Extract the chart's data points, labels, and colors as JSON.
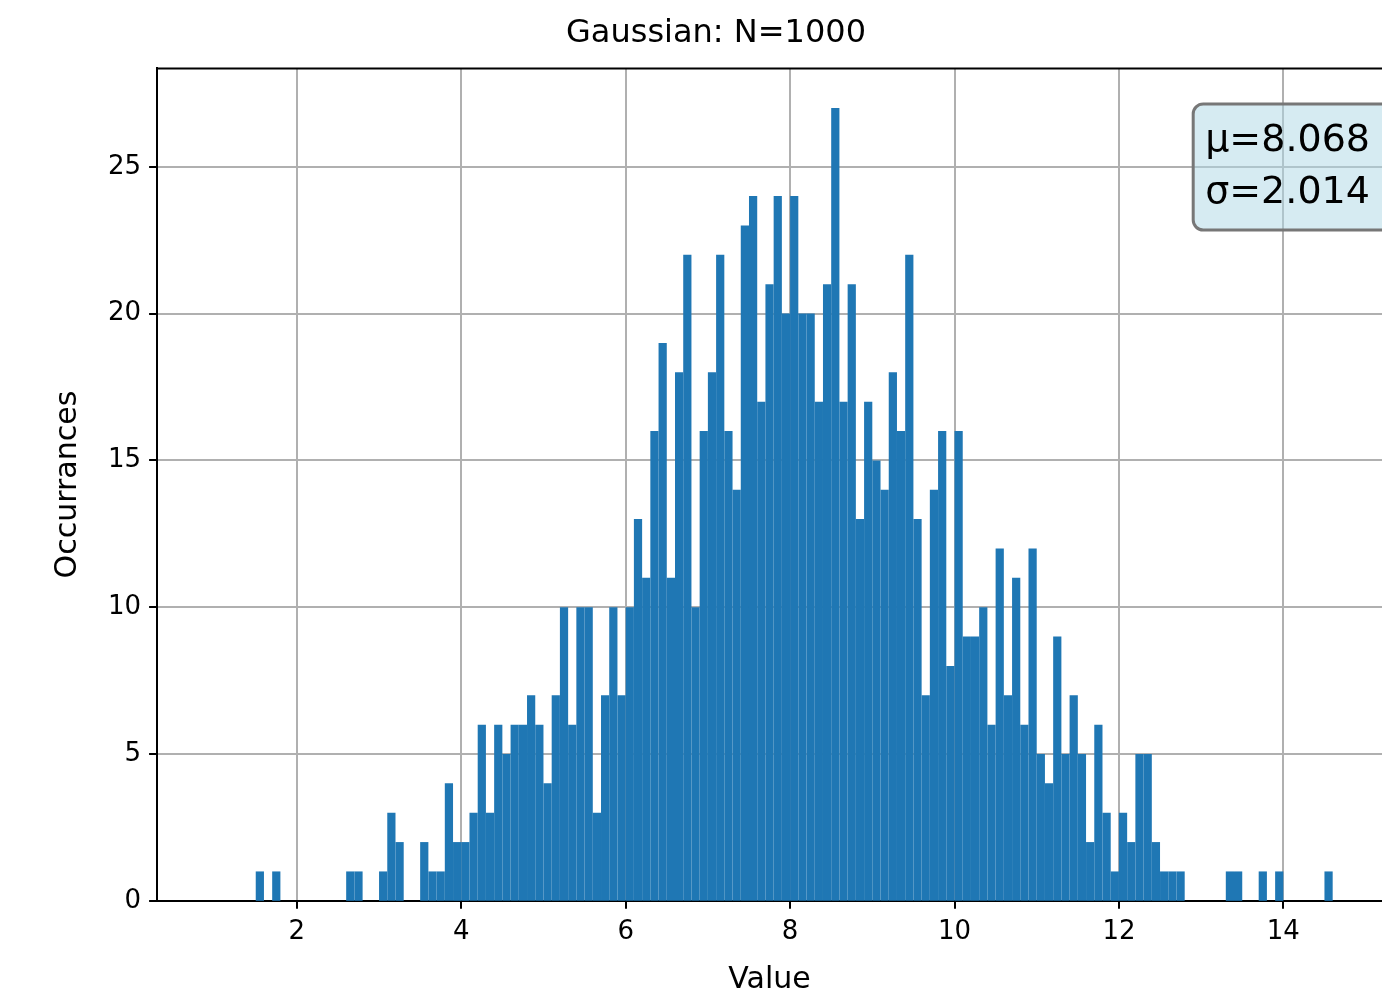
{
  "chart_data": {
    "type": "histogram",
    "title": "Gaussian: N=1000",
    "xlabel": "Value",
    "ylabel": "Occurrances",
    "bins": [
      1.5,
      1.6,
      1.7,
      1.8,
      1.9,
      2.0,
      2.1,
      2.2,
      2.3,
      2.4,
      2.5,
      2.6,
      2.7,
      2.8,
      2.9,
      3.0,
      3.1,
      3.2,
      3.3,
      3.4,
      3.5,
      3.6,
      3.7,
      3.8,
      3.9,
      4.0,
      4.1,
      4.2,
      4.3,
      4.4,
      4.5,
      4.6,
      4.7,
      4.8,
      4.9,
      5.0,
      5.1,
      5.2,
      5.3,
      5.4,
      5.5,
      5.6,
      5.7,
      5.8,
      5.9,
      6.0,
      6.1,
      6.2,
      6.3,
      6.4,
      6.5,
      6.6,
      6.7,
      6.8,
      6.9,
      7.0,
      7.1,
      7.2,
      7.3,
      7.4,
      7.5,
      7.6,
      7.7,
      7.8,
      7.9,
      8.0,
      8.1,
      8.2,
      8.3,
      8.4,
      8.5,
      8.6,
      8.7,
      8.8,
      8.9,
      9.0,
      9.1,
      9.2,
      9.3,
      9.4,
      9.5,
      9.6,
      9.7,
      9.8,
      9.9,
      10.0,
      10.1,
      10.2,
      10.3,
      10.4,
      10.5,
      10.6,
      10.7,
      10.8,
      10.9,
      11.0,
      11.1,
      11.2,
      11.3,
      11.4,
      11.5,
      11.6,
      11.7,
      11.8,
      11.9,
      12.0,
      12.1,
      12.2,
      12.3,
      12.4,
      12.5,
      12.6,
      12.7,
      12.8,
      12.9,
      13.0,
      13.1,
      13.2,
      13.3,
      13.4,
      13.5,
      13.6,
      13.7,
      13.8,
      13.9,
      14.0,
      14.1,
      14.2,
      14.3,
      14.4,
      14.5,
      14.6
    ],
    "values": [
      1,
      0,
      1,
      0,
      0,
      0,
      0,
      0,
      0,
      0,
      0,
      1,
      1,
      0,
      0,
      1,
      3,
      2,
      0,
      0,
      2,
      1,
      1,
      4,
      2,
      2,
      3,
      6,
      3,
      6,
      5,
      6,
      6,
      7,
      6,
      4,
      7,
      10,
      6,
      10,
      10,
      3,
      7,
      10,
      7,
      10,
      13,
      11,
      16,
      19,
      11,
      18,
      22,
      10,
      16,
      18,
      22,
      16,
      14,
      23,
      24,
      17,
      21,
      24,
      20,
      24,
      20,
      20,
      17,
      21,
      27,
      17,
      21,
      13,
      17,
      15,
      14,
      18,
      16,
      22,
      13,
      7,
      14,
      16,
      8,
      16,
      9,
      9,
      10,
      6,
      12,
      7,
      11,
      6,
      12,
      5,
      4,
      9,
      5,
      7,
      5,
      2,
      6,
      3,
      1,
      3,
      2,
      5,
      5,
      2,
      1,
      1,
      1,
      0,
      0,
      0,
      0,
      0,
      1,
      1,
      0,
      0,
      1,
      0,
      1,
      0,
      0,
      0,
      0,
      0,
      1
    ],
    "color": "#1f77b4",
    "xlim": [
      0.3,
      15.2
    ],
    "xticks": [
      2,
      4,
      6,
      8,
      10,
      12,
      14
    ],
    "ylim": [
      0,
      28.35
    ],
    "yticks": [
      0,
      5,
      10,
      15,
      20,
      25
    ],
    "grid": true,
    "annotations": [
      "μ=8.068",
      "σ=2.014"
    ]
  }
}
